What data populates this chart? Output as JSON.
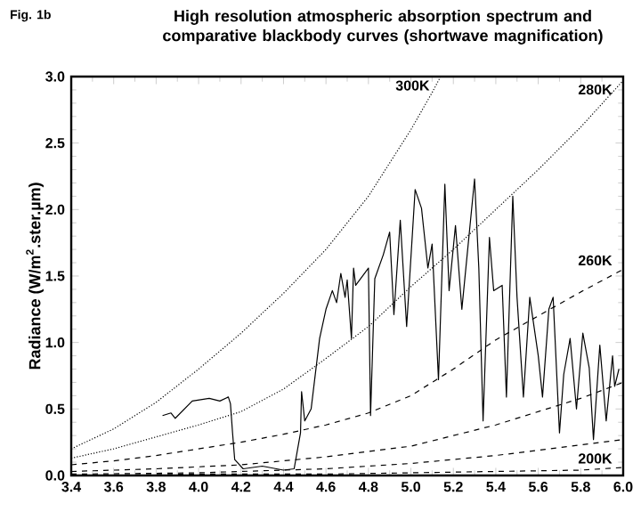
{
  "chart_data": {
    "type": "line",
    "title": "High resolution atmospheric absorption spectrum and comparative blackbody curves (shortwave magnification)",
    "ylabel": "Radiance (W/m$^{2}$.ster.µm)",
    "annotations": [
      "Fig. 1b"
    ],
    "xlim": [
      3.4,
      6.0
    ],
    "ylim": [
      0,
      3.0
    ],
    "xticks": [
      3.4,
      3.6,
      3.8,
      {
        "value": 4,
        "label": "4.0"
      },
      4.2,
      4.4,
      4.6,
      4.8,
      {
        "value": 5,
        "label": "5.0"
      },
      5.2,
      5.4,
      5.6,
      5.8,
      {
        "value": 6,
        "label": "6.0"
      }
    ],
    "yticks": [
      {
        "value": 0,
        "label": "0.0"
      },
      0.5,
      {
        "value": 1,
        "label": "1.0"
      },
      1.5,
      {
        "value": 2,
        "label": "2.0"
      },
      2.5,
      {
        "value": 3,
        "label": "3.0"
      }
    ],
    "grid": false,
    "legend": false,
    "series": [
      {
        "color": "#000000",
        "line_style": "solid",
        "x": [
          3.83,
          3.87,
          3.89,
          3.97,
          4.05,
          4.1,
          4.14,
          4.15,
          4.16,
          4.17,
          4.21,
          4.3,
          4.4,
          4.45,
          4.48,
          4.485,
          4.5,
          4.53,
          4.57,
          4.6,
          4.63,
          4.65,
          4.67,
          4.69,
          4.7,
          4.72,
          4.73,
          4.74,
          4.8,
          4.81,
          4.83,
          4.87,
          4.9,
          4.92,
          4.95,
          4.98,
          5.02,
          5.05,
          5.08,
          5.1,
          5.13,
          5.16,
          5.18,
          5.21,
          5.24,
          5.3,
          5.32,
          5.34,
          5.37,
          5.39,
          5.43,
          5.45,
          5.48,
          5.5,
          5.53,
          5.56,
          5.6,
          5.62,
          5.65,
          5.67,
          5.7,
          5.72,
          5.75,
          5.78,
          5.81,
          5.84,
          5.86,
          5.89,
          5.92,
          5.95,
          5.96,
          5.98
        ],
        "values": [
          0.45,
          0.47,
          0.43,
          0.56,
          0.58,
          0.56,
          0.59,
          0.54,
          0.32,
          0.12,
          0.05,
          0.07,
          0.04,
          0.05,
          0.32,
          0.63,
          0.41,
          0.5,
          1.03,
          1.25,
          1.39,
          1.3,
          1.52,
          1.34,
          1.47,
          1.03,
          1.56,
          1.43,
          1.56,
          0.45,
          1.48,
          1.66,
          1.83,
          1.21,
          1.92,
          1.12,
          2.15,
          2.01,
          1.56,
          1.74,
          0.72,
          2.19,
          1.39,
          1.88,
          1.25,
          2.23,
          1.56,
          0.41,
          1.79,
          1.39,
          1.43,
          0.59,
          2.1,
          1.34,
          0.59,
          1.34,
          0.9,
          0.59,
          1.25,
          1.34,
          0.32,
          0.76,
          1.03,
          0.5,
          1.07,
          0.81,
          0.27,
          0.98,
          0.41,
          0.9,
          0.67,
          0.8
        ]
      },
      {
        "name": "300K",
        "color": "#000000",
        "line_style": "dotted",
        "x": [
          3.4,
          3.6,
          3.8,
          4.0,
          4.2,
          4.4,
          4.6,
          4.8,
          5.0,
          5.1,
          5.14
        ],
        "values": [
          0.2,
          0.35,
          0.55,
          0.8,
          1.07,
          1.37,
          1.7,
          2.1,
          2.6,
          2.88,
          3.0
        ]
      },
      {
        "name": "280K",
        "color": "#000000",
        "line_style": "dotted",
        "x": [
          3.4,
          3.6,
          3.8,
          4.0,
          4.2,
          4.4,
          4.6,
          4.8,
          5.0,
          5.2,
          5.4,
          5.6,
          5.8,
          6.0
        ],
        "values": [
          0.13,
          0.2,
          0.29,
          0.38,
          0.48,
          0.65,
          0.88,
          1.12,
          1.42,
          1.7,
          2.0,
          2.3,
          2.62,
          2.97
        ]
      },
      {
        "name": "260K",
        "color": "#000000",
        "line_style": "dashed",
        "x": [
          3.4,
          3.6,
          3.8,
          4.0,
          4.2,
          4.4,
          4.6,
          4.8,
          5.0,
          5.2,
          5.4,
          5.6,
          5.8,
          6.0
        ],
        "values": [
          0.08,
          0.11,
          0.15,
          0.2,
          0.25,
          0.31,
          0.38,
          0.47,
          0.6,
          0.8,
          1.02,
          1.2,
          1.38,
          1.55
        ]
      },
      {
        "color": "#000000",
        "line_style": "dashed",
        "x": [
          3.4,
          3.8,
          4.2,
          4.6,
          5.0,
          5.4,
          5.8,
          6.0
        ],
        "values": [
          0.03,
          0.05,
          0.08,
          0.14,
          0.22,
          0.38,
          0.58,
          0.7
        ]
      },
      {
        "color": "#000000",
        "line_style": "dashed",
        "x": [
          3.4,
          4.0,
          4.6,
          5.0,
          5.4,
          5.8,
          6.0
        ],
        "values": [
          0.01,
          0.02,
          0.05,
          0.09,
          0.15,
          0.23,
          0.27
        ]
      },
      {
        "name": "200K",
        "color": "#000000",
        "line_style": "dashed",
        "x": [
          3.4,
          4.0,
          4.6,
          5.0,
          5.4,
          5.8,
          6.0
        ],
        "values": [
          0.0,
          0.01,
          0.01,
          0.02,
          0.03,
          0.04,
          0.06
        ]
      }
    ]
  }
}
